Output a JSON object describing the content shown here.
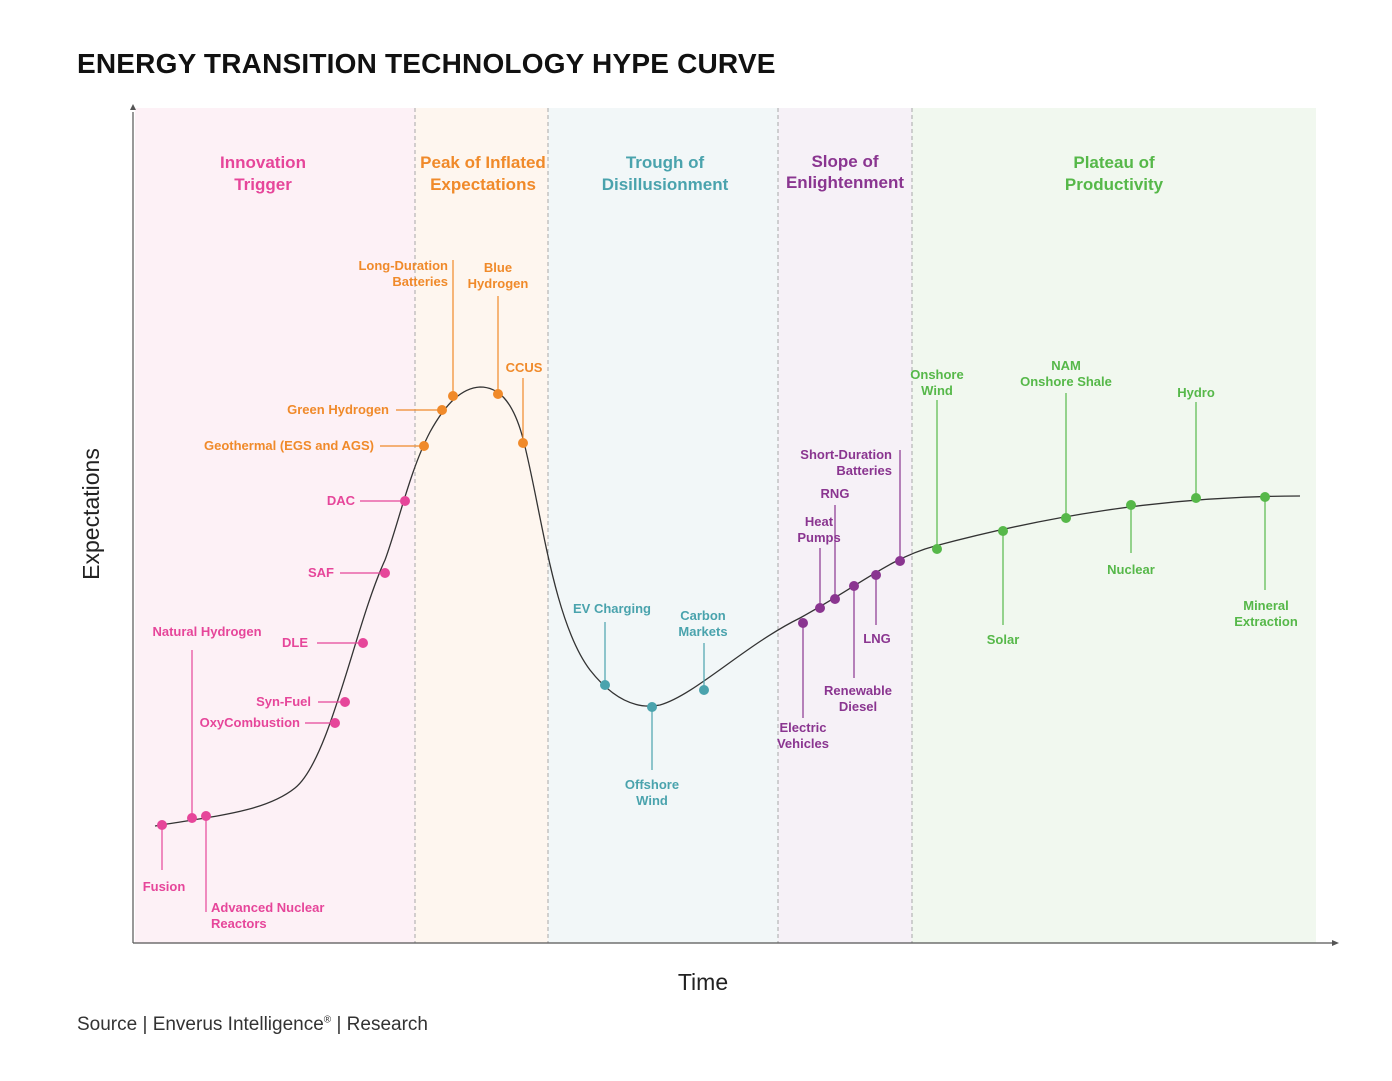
{
  "title": "ENERGY TRANSITION TECHNOLOGY HYPE CURVE",
  "source": {
    "text": "Source | Enverus Intelligence",
    "mark": "®",
    "suffix": " | Research"
  },
  "chart_data": {
    "type": "scatter",
    "title": "ENERGY TRANSITION TECHNOLOGY HYPE CURVE",
    "xlabel": "Time",
    "ylabel": "Expectations",
    "grid": false,
    "phases": [
      {
        "id": "innovation-trigger",
        "name": "Innovation Trigger",
        "lines": [
          "Innovation",
          "Trigger"
        ],
        "color": "#e6469a",
        "bg": "#fdf1f6"
      },
      {
        "id": "peak",
        "name": "Peak of Inflated Expectations",
        "lines": [
          "Peak of Inflated",
          "Expectations"
        ],
        "color": "#f08a2a",
        "bg": "#fef6ef"
      },
      {
        "id": "trough",
        "name": "Trough of Disillusionment",
        "lines": [
          "Trough of",
          "Disillusionment"
        ],
        "color": "#4aa3ad",
        "bg": "#f2f7f8"
      },
      {
        "id": "slope",
        "name": "Slope of Enlightenment",
        "lines": [
          "Slope of",
          "Enlightenment"
        ],
        "color": "#8a3590",
        "bg": "#f6f1f7"
      },
      {
        "id": "plateau",
        "name": "Plateau of Productivity",
        "lines": [
          "Plateau of",
          "Productivity"
        ],
        "color": "#56b849",
        "bg": "#f1f8ef"
      }
    ],
    "technologies": [
      {
        "name": "Fusion",
        "lines": [
          "Fusion"
        ],
        "phase": "innovation-trigger"
      },
      {
        "name": "Natural Hydrogen",
        "lines": [
          "Natural Hydrogen"
        ],
        "phase": "innovation-trigger"
      },
      {
        "name": "Advanced Nuclear Reactors",
        "lines": [
          "Advanced Nuclear",
          "Reactors"
        ],
        "phase": "innovation-trigger"
      },
      {
        "name": "OxyCombustion",
        "lines": [
          "OxyCombustion"
        ],
        "phase": "innovation-trigger"
      },
      {
        "name": "Syn-Fuel",
        "lines": [
          "Syn-Fuel"
        ],
        "phase": "innovation-trigger"
      },
      {
        "name": "DLE",
        "lines": [
          "DLE"
        ],
        "phase": "innovation-trigger"
      },
      {
        "name": "SAF",
        "lines": [
          "SAF"
        ],
        "phase": "innovation-trigger"
      },
      {
        "name": "DAC",
        "lines": [
          "DAC"
        ],
        "phase": "innovation-trigger"
      },
      {
        "name": "Geothermal (EGS and AGS)",
        "lines": [
          "Geothermal (EGS and AGS)"
        ],
        "phase": "peak"
      },
      {
        "name": "Green Hydrogen",
        "lines": [
          "Green Hydrogen"
        ],
        "phase": "peak"
      },
      {
        "name": "Long-Duration Batteries",
        "lines": [
          "Long-Duration",
          "Batteries"
        ],
        "phase": "peak"
      },
      {
        "name": "Blue Hydrogen",
        "lines": [
          "Blue",
          "Hydrogen"
        ],
        "phase": "peak"
      },
      {
        "name": "CCUS",
        "lines": [
          "CCUS"
        ],
        "phase": "peak"
      },
      {
        "name": "EV Charging",
        "lines": [
          "EV Charging"
        ],
        "phase": "trough"
      },
      {
        "name": "Offshore Wind",
        "lines": [
          "Offshore",
          "Wind"
        ],
        "phase": "trough"
      },
      {
        "name": "Carbon Markets",
        "lines": [
          "Carbon",
          "Markets"
        ],
        "phase": "trough"
      },
      {
        "name": "Electric Vehicles",
        "lines": [
          "Electric",
          "Vehicles"
        ],
        "phase": "slope"
      },
      {
        "name": "Heat Pumps",
        "lines": [
          "Heat",
          "Pumps"
        ],
        "phase": "slope"
      },
      {
        "name": "RNG",
        "lines": [
          "RNG"
        ],
        "phase": "slope"
      },
      {
        "name": "Renewable Diesel",
        "lines": [
          "Renewable",
          "Diesel"
        ],
        "phase": "slope"
      },
      {
        "name": "LNG",
        "lines": [
          "LNG"
        ],
        "phase": "slope"
      },
      {
        "name": "Short-Duration Batteries",
        "lines": [
          "Short-Duration",
          "Batteries"
        ],
        "phase": "slope"
      },
      {
        "name": "Onshore Wind",
        "lines": [
          "Onshore",
          "Wind"
        ],
        "phase": "plateau"
      },
      {
        "name": "Solar",
        "lines": [
          "Solar"
        ],
        "phase": "plateau"
      },
      {
        "name": "NAM Onshore Shale",
        "lines": [
          "NAM",
          "Onshore Shale"
        ],
        "phase": "plateau"
      },
      {
        "name": "Nuclear",
        "lines": [
          "Nuclear"
        ],
        "phase": "plateau"
      },
      {
        "name": "Hydro",
        "lines": [
          "Hydro"
        ],
        "phase": "plateau"
      },
      {
        "name": "Mineral Extraction",
        "lines": [
          "Mineral",
          "Extraction"
        ],
        "phase": "plateau"
      }
    ]
  }
}
